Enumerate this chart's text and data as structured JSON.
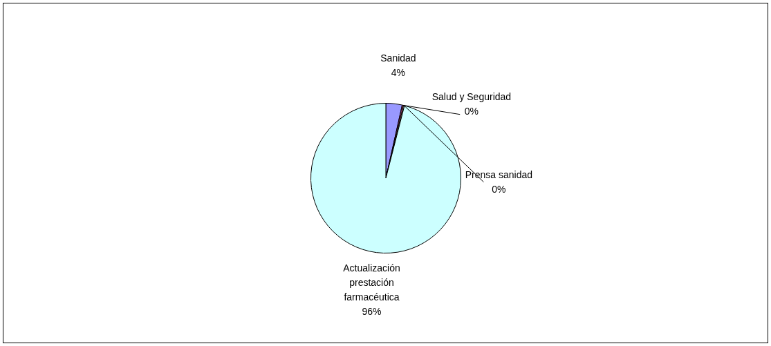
{
  "chart_data": {
    "type": "pie",
    "categories": [
      "Sanidad",
      "Salud y Seguridad",
      "Prensa sanidad",
      "Actualización prestación farmacéutica"
    ],
    "values": [
      3.5,
      0.3,
      0.2,
      96
    ],
    "value_labels": [
      "4%",
      "0%",
      "0%",
      "96%"
    ],
    "colors": [
      "#9999ff",
      "#993366",
      "#ffffcc",
      "#ccffff"
    ],
    "legend": false
  }
}
